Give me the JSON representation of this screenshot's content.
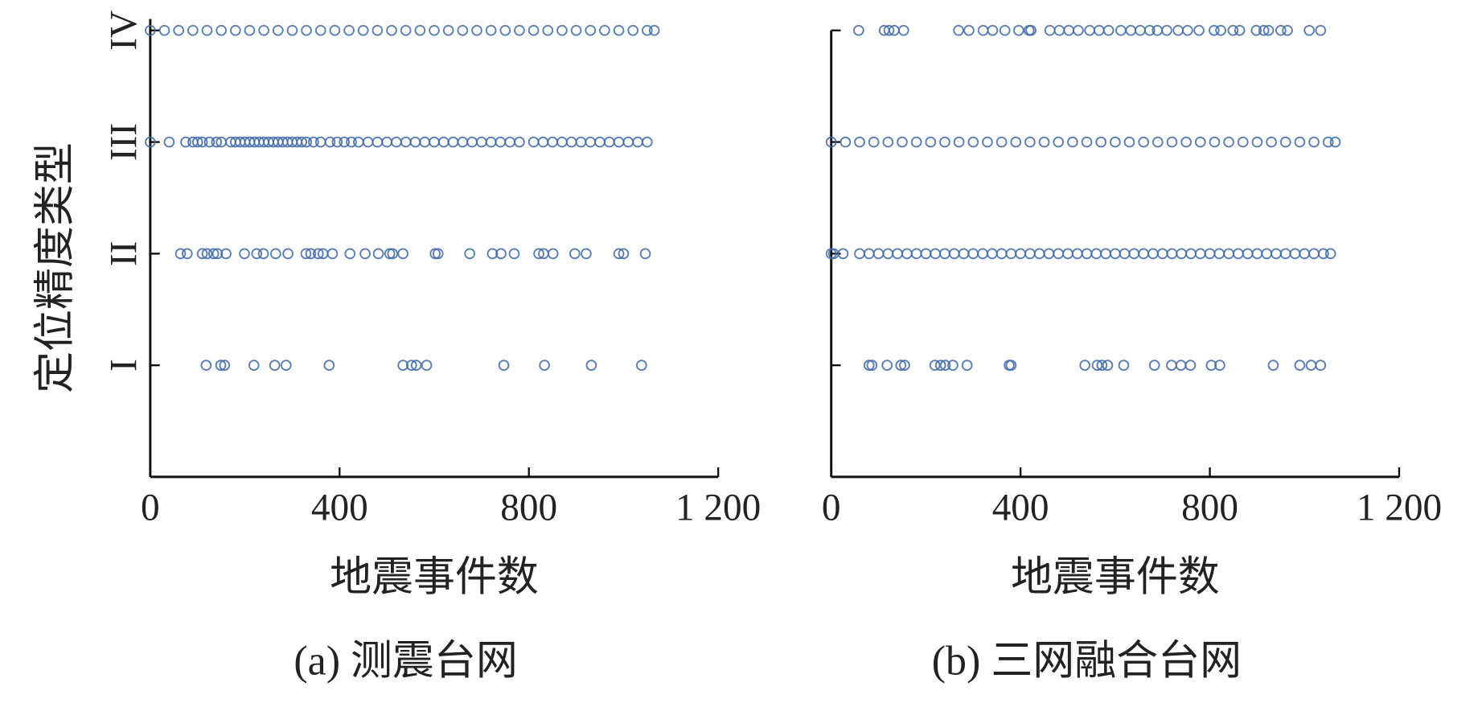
{
  "chart_data": [
    {
      "type": "strip",
      "caption": "(a) 测震台网",
      "xlabel": "地震事件数",
      "ylabel": "定位精度类型",
      "xlim": [
        0,
        1200
      ],
      "xticks": [
        0,
        400,
        800,
        {
          "value": 1200,
          "label": "1 200"
        }
      ],
      "ylim": [
        0,
        4
      ],
      "yticks": [
        {
          "value": 1,
          "label": "I"
        },
        {
          "value": 2,
          "label": "II"
        },
        {
          "value": 3,
          "label": "III"
        },
        {
          "value": 4,
          "label": "IV"
        }
      ],
      "show_ytick_labels": true,
      "color": "#3f68a6",
      "series": [
        {
          "y": 1,
          "x": [
            118,
            149,
            157,
            219,
            263,
            287,
            378,
            534,
            552,
            562,
            584,
            747,
            833,
            932,
            1038
          ]
        },
        {
          "y": 2,
          "x": [
            64,
            78,
            110,
            120,
            134,
            142,
            160,
            199,
            225,
            239,
            265,
            291,
            329,
            339,
            355,
            365,
            385,
            422,
            454,
            482,
            506,
            512,
            534,
            602,
            608,
            675,
            723,
            741,
            769,
            821,
            831,
            851,
            897,
            921,
            990,
            1000,
            1046
          ]
        },
        {
          "y": 3,
          "x": [
            0,
            40,
            75,
            90,
            100,
            110,
            125,
            140,
            150,
            170,
            180,
            190,
            200,
            210,
            220,
            230,
            240,
            250,
            260,
            270,
            280,
            290,
            300,
            310,
            320,
            330,
            345,
            360,
            380,
            395,
            410,
            425,
            440,
            460,
            480,
            500,
            520,
            540,
            560,
            580,
            600,
            620,
            640,
            660,
            680,
            700,
            720,
            740,
            760,
            780,
            810,
            830,
            850,
            870,
            890,
            910,
            930,
            950,
            970,
            990,
            1010,
            1030,
            1050
          ]
        },
        {
          "y": 4,
          "x": [
            0,
            30,
            60,
            90,
            120,
            150,
            180,
            210,
            240,
            270,
            300,
            330,
            360,
            390,
            420,
            450,
            480,
            510,
            540,
            570,
            600,
            630,
            660,
            690,
            720,
            750,
            780,
            810,
            840,
            870,
            900,
            930,
            960,
            990,
            1020,
            1050,
            1065
          ]
        }
      ]
    },
    {
      "type": "strip",
      "caption": "(b) 三网融合台网",
      "xlabel": "地震事件数",
      "xlim": [
        0,
        1200
      ],
      "xticks": [
        0,
        400,
        800,
        {
          "value": 1200,
          "label": "1 200"
        }
      ],
      "ylim": [
        0,
        4
      ],
      "yticks": [
        1,
        2,
        3,
        4
      ],
      "show_ytick_labels": false,
      "color": "#3f68a6",
      "series": [
        {
          "y": 1,
          "x": [
            80,
            86,
            118,
            147,
            155,
            219,
            231,
            241,
            257,
            287,
            376,
            380,
            536,
            562,
            572,
            584,
            618,
            683,
            719,
            739,
            759,
            803,
            821,
            934,
            990,
            1014,
            1034
          ]
        },
        {
          "y": 2,
          "x": [
            0,
            5,
            25,
            60,
            80,
            100,
            120,
            140,
            160,
            180,
            200,
            220,
            240,
            260,
            280,
            300,
            320,
            340,
            360,
            380,
            400,
            420,
            440,
            460,
            480,
            500,
            520,
            540,
            560,
            580,
            600,
            620,
            640,
            660,
            680,
            700,
            720,
            740,
            760,
            780,
            800,
            820,
            840,
            860,
            880,
            900,
            920,
            940,
            960,
            980,
            1000,
            1020,
            1040,
            1055
          ]
        },
        {
          "y": 3,
          "x": [
            0,
            30,
            60,
            90,
            120,
            150,
            180,
            210,
            240,
            270,
            300,
            330,
            360,
            390,
            420,
            450,
            480,
            510,
            540,
            570,
            600,
            630,
            660,
            690,
            720,
            750,
            780,
            810,
            840,
            870,
            900,
            930,
            960,
            990,
            1020,
            1050,
            1065
          ]
        },
        {
          "y": 4,
          "x": [
            58,
            112,
            122,
            133,
            153,
            269,
            291,
            321,
            341,
            367,
            396,
            418,
            422,
            462,
            482,
            502,
            522,
            546,
            566,
            586,
            612,
            633,
            653,
            673,
            689,
            709,
            733,
            753,
            777,
            809,
            823,
            849,
            863,
            898,
            914,
            924,
            950,
            964,
            1010,
            1034
          ]
        }
      ]
    }
  ]
}
